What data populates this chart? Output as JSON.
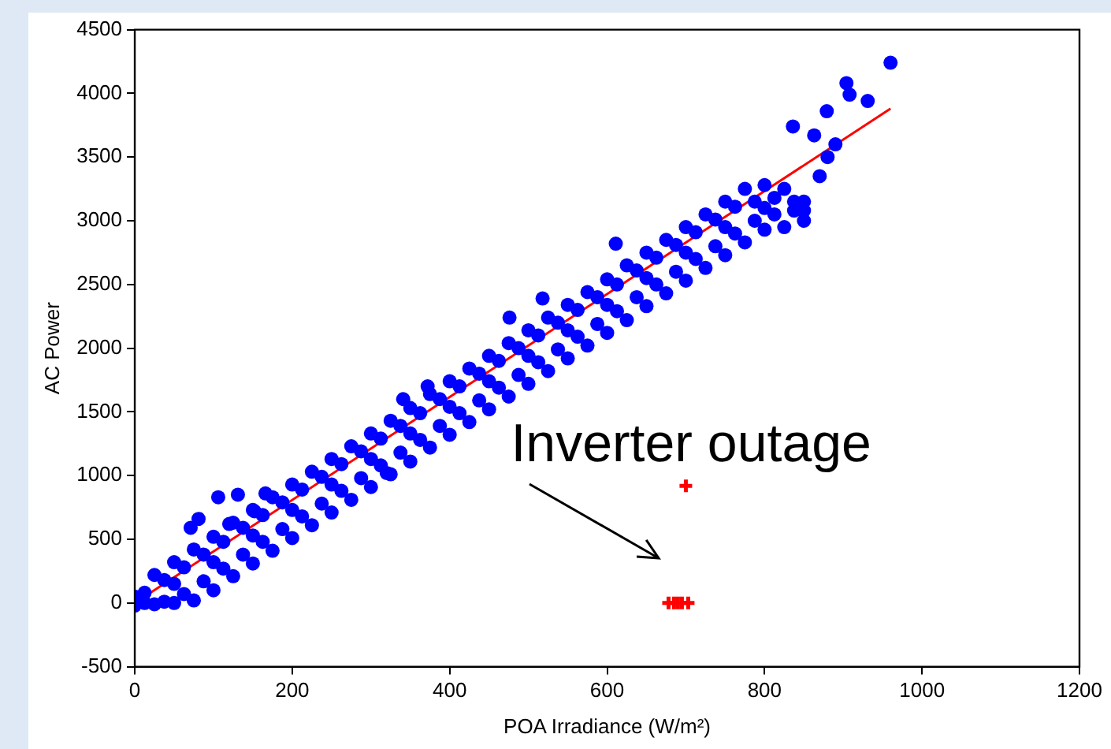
{
  "chart_data": {
    "type": "scatter",
    "xlabel": "POA Irradiance (W/m²)",
    "ylabel": "AC Power",
    "xlim": [
      0,
      1200
    ],
    "xticks": [
      0,
      200,
      400,
      600,
      800,
      1000,
      1200
    ],
    "ylim": [
      -500,
      4500
    ],
    "yticks": [
      -500,
      0,
      500,
      1000,
      1500,
      2000,
      2500,
      3000,
      3500,
      4000,
      4500
    ],
    "grid": false,
    "legend": false,
    "marker": "circle",
    "annotations": [
      {
        "text": "Inverter outage",
        "x": 690,
        "y": 0
      }
    ],
    "series": [
      {
        "color": "#0000ff",
        "x": [
          0,
          25,
          50,
          75,
          100,
          125,
          150,
          175,
          200,
          225,
          250,
          275,
          300,
          325,
          350,
          375,
          400,
          425,
          450,
          475,
          500,
          525,
          550,
          575,
          600,
          625,
          650,
          675,
          700,
          725,
          750,
          775,
          800,
          825,
          850,
          0,
          25,
          50,
          75,
          100,
          125,
          150,
          175,
          200,
          225,
          250,
          275,
          300,
          325,
          350,
          375,
          400,
          425,
          450,
          475,
          500,
          525,
          550,
          575,
          600,
          625,
          650,
          675,
          700,
          725,
          750,
          775,
          800,
          825,
          850,
          50,
          100,
          150,
          200,
          250,
          300,
          350,
          400,
          450,
          500,
          550,
          600,
          650,
          700,
          750,
          800,
          850,
          12.5,
          37.5,
          62.5,
          87.5,
          112.5,
          137.5,
          162.5,
          187.5,
          212.5,
          237.5,
          262.5,
          287.5,
          312.5,
          337.5,
          362.5,
          387.5,
          412.5,
          437.5,
          462.5,
          487.5,
          512.5,
          537.5,
          562.5,
          587.5,
          612.5,
          637.5,
          662.5,
          687.5,
          712.5,
          737.5,
          762.5,
          787.5,
          812.5,
          837.5,
          12.5,
          37.5,
          62.5,
          87.5,
          112.5,
          137.5,
          162.5,
          187.5,
          212.5,
          237.5,
          262.5,
          287.5,
          312.5,
          337.5,
          362.5,
          387.5,
          412.5,
          437.5,
          462.5,
          487.5,
          512.5,
          537.5,
          562.5,
          587.5,
          612.5,
          637.5,
          662.5,
          687.5,
          712.5,
          737.5,
          762.5,
          787.5,
          812.5,
          837.5,
          71,
          81,
          106,
          120,
          131,
          152,
          166,
          320,
          341,
          372,
          476,
          518,
          611,
          836,
          863,
          870,
          879,
          880,
          890,
          904,
          908,
          931,
          960
        ],
        "values": [
          50,
          220,
          320,
          420,
          520,
          630,
          730,
          830,
          930,
          1030,
          1130,
          1230,
          1330,
          1430,
          1530,
          1640,
          1740,
          1840,
          1940,
          2040,
          2140,
          2240,
          2340,
          2440,
          2540,
          2650,
          2750,
          2850,
          2950,
          3050,
          3150,
          3250,
          3280,
          3250,
          3150,
          -20,
          -10,
          0,
          20,
          100,
          210,
          310,
          410,
          510,
          610,
          710,
          810,
          910,
          1010,
          1110,
          1220,
          1320,
          1420,
          1520,
          1620,
          1720,
          1820,
          1920,
          2020,
          2120,
          2220,
          2330,
          2430,
          2530,
          2630,
          2730,
          2830,
          2930,
          2950,
          3000,
          150,
          320,
          530,
          730,
          930,
          1130,
          1330,
          1540,
          1740,
          1940,
          2140,
          2340,
          2550,
          2750,
          2950,
          3100,
          3080,
          80,
          180,
          280,
          380,
          480,
          590,
          690,
          790,
          890,
          990,
          1090,
          1190,
          1290,
          1390,
          1490,
          1600,
          1700,
          1800,
          1900,
          2000,
          2100,
          2200,
          2300,
          2400,
          2500,
          2610,
          2710,
          2810,
          2910,
          3010,
          3110,
          3150,
          3180,
          3150,
          0,
          10,
          70,
          170,
          270,
          380,
          480,
          580,
          680,
          780,
          880,
          980,
          1080,
          1180,
          1280,
          1390,
          1490,
          1590,
          1690,
          1790,
          1890,
          1990,
          2090,
          2190,
          2290,
          2400,
          2500,
          2600,
          2700,
          2800,
          2900,
          3000,
          3050,
          3080,
          590,
          660,
          830,
          620,
          850,
          720,
          860,
          1020,
          1600,
          1700,
          2240,
          2390,
          2820,
          3740,
          3670,
          3350,
          3860,
          3500,
          3600,
          4080,
          3990,
          3940,
          4240
        ]
      },
      {
        "type": "line",
        "color": "#ff0000",
        "marker": "none",
        "line_style": "solid",
        "x": [
          0,
          960
        ],
        "values": [
          0,
          3880
        ]
      },
      {
        "type": "scatter",
        "color": "#ff0000",
        "marker": "cross",
        "x": [
          700,
          678,
          685,
          690,
          695,
          703
        ],
        "values": [
          920,
          0,
          0,
          0,
          0,
          0
        ]
      }
    ]
  }
}
